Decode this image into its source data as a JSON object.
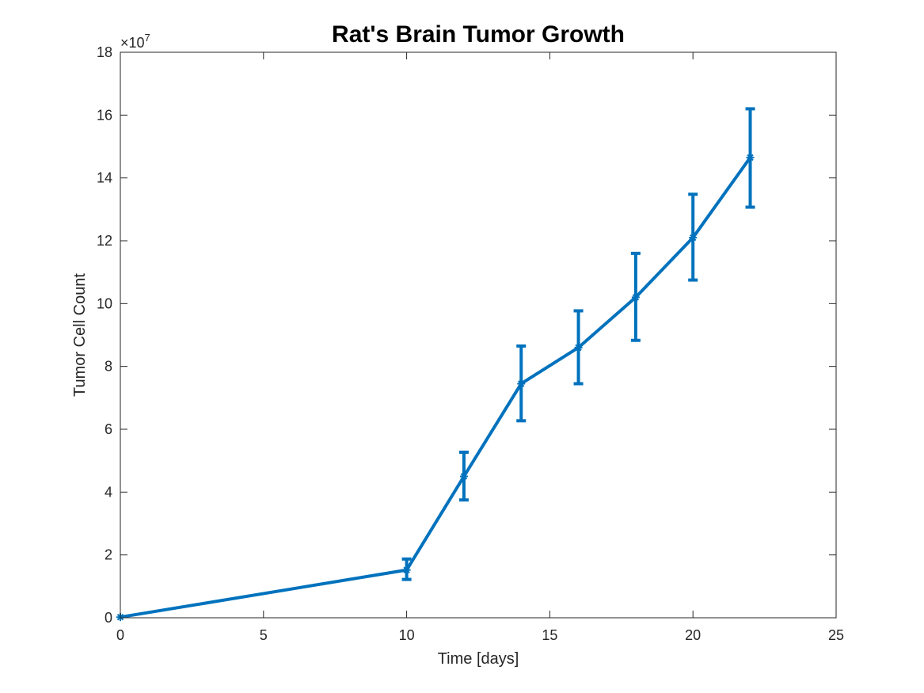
{
  "chart_data": {
    "type": "line",
    "title": "Rat's Brain Tumor Growth",
    "xlabel": "Time [days]",
    "ylabel": "Tumor Cell Count",
    "y_exponent_label": "×10",
    "y_exponent_power": "7",
    "xlim": [
      0,
      25
    ],
    "ylim": [
      0,
      18
    ],
    "y_multiplier": 10000000,
    "x_ticks": [
      "0",
      "5",
      "10",
      "15",
      "20",
      "25"
    ],
    "y_ticks": [
      "0",
      "2",
      "4",
      "6",
      "8",
      "10",
      "12",
      "14",
      "16",
      "18"
    ],
    "grid": false,
    "box": true,
    "series": [
      {
        "x": [
          0,
          10,
          12,
          14,
          16,
          18,
          20,
          22
        ],
        "y": [
          0.02,
          1.52,
          4.5,
          7.45,
          8.6,
          10.2,
          12.1,
          14.65
        ],
        "y_lower": [
          0.02,
          1.22,
          3.75,
          6.27,
          7.45,
          8.83,
          10.75,
          13.07
        ],
        "y_upper": [
          0.02,
          1.87,
          5.27,
          8.65,
          9.77,
          11.6,
          13.48,
          16.2
        ],
        "color": "#0072BD",
        "marker": "asterisk"
      }
    ]
  }
}
